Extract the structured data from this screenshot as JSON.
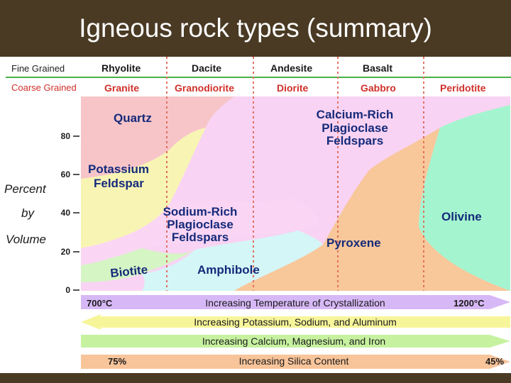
{
  "title": "Igneous rock types (summary)",
  "fine": {
    "label": "Fine Grained",
    "rocks": [
      "Rhyolite",
      "Dacite",
      "Andesite",
      "Basalt"
    ]
  },
  "coarse": {
    "label": "Coarse Grained",
    "rocks": [
      "Granite",
      "Granodiorite",
      "Diorite",
      "Gabbro",
      "Peridotite"
    ]
  },
  "yaxis": {
    "label_lines": [
      "Percent",
      "by",
      "Volume"
    ],
    "ticks": [
      "80",
      "60",
      "40",
      "20",
      "0"
    ]
  },
  "minerals": {
    "quartz": "Quartz",
    "potassium": [
      "Potassium",
      "Feldspar"
    ],
    "calcium": [
      "Calcium-Rich",
      "Plagioclase",
      "Feldspars"
    ],
    "sodium": [
      "Sodium-Rich",
      "Plagioclase",
      "Feldspars"
    ],
    "olivine": "Olivine",
    "pyroxene": "Pyroxene",
    "biotite": "Biotite",
    "amphibole": "Amphibole"
  },
  "arrows": {
    "temperature": {
      "left": "700°C",
      "text": "Increasing Temperature of Crystallization",
      "right": "1200°C"
    },
    "potassium": {
      "text": "Increasing Potassium, Sodium, and Aluminum"
    },
    "calcium": {
      "text": "Increasing Calcium, Magnesium, and Iron"
    },
    "silica": {
      "left": "75%",
      "text": "Increasing Silica Content",
      "right": "45%"
    }
  },
  "colors": {
    "quartz": "#f7c5c8",
    "potassium": "#f8f5b4",
    "calcium": "#f9d3f3",
    "sodium": "#fad6f4",
    "olivine": "#a4f5cf",
    "pyroxene": "#f8c79a",
    "biotite": "#d5f5c4",
    "amphibole": "#d4f6f6",
    "label_dark": "#152a7a",
    "label_red": "#d0302a",
    "arrow_temp": "#d7b8f6",
    "arrow_potassium": "#f7f59a",
    "arrow_calcium": "#c6f2a0",
    "arrow_silica": "#f8c49a"
  }
}
